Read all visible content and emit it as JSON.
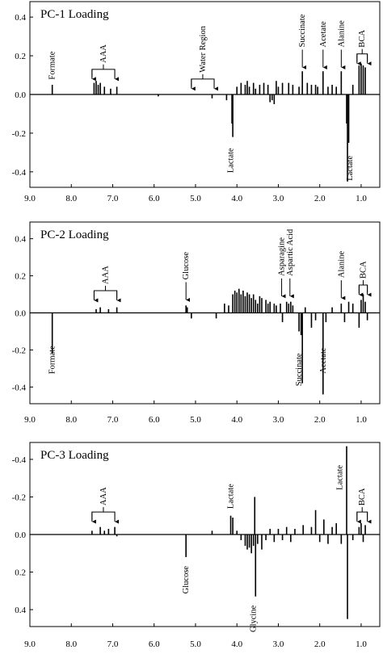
{
  "chart_data": [
    {
      "type": "stem",
      "title": "PC-1 Loading",
      "color": "#000000",
      "x": [
        8.46,
        7.45,
        7.4,
        7.35,
        7.3,
        7.2,
        7.05,
        6.9,
        5.9,
        4.6,
        4.25,
        4.12,
        4.1,
        4.0,
        3.9,
        3.8,
        3.75,
        3.7,
        3.6,
        3.55,
        3.45,
        3.35,
        3.25,
        3.2,
        3.15,
        3.1,
        3.05,
        3.0,
        2.9,
        2.75,
        2.65,
        2.5,
        2.42,
        2.3,
        2.2,
        2.1,
        2.05,
        1.92,
        1.8,
        1.7,
        1.6,
        1.48,
        1.35,
        1.33,
        1.3,
        1.2,
        1.05,
        1.0,
        0.95,
        0.9
      ],
      "values": [
        0.05,
        0.06,
        0.07,
        0.05,
        0.06,
        0.04,
        0.03,
        0.04,
        -0.01,
        -0.02,
        -0.03,
        -0.15,
        -0.22,
        0.04,
        0.06,
        0.05,
        0.07,
        0.04,
        0.06,
        0.03,
        0.05,
        0.06,
        0.05,
        -0.04,
        -0.03,
        -0.05,
        0.07,
        0.04,
        0.06,
        0.06,
        0.05,
        0.04,
        0.12,
        0.06,
        0.05,
        0.05,
        0.04,
        0.12,
        0.04,
        0.05,
        0.04,
        0.12,
        -0.15,
        -0.45,
        -0.25,
        0.05,
        0.15,
        0.16,
        0.15,
        0.14
      ],
      "xlim": [
        9.0,
        0.55
      ],
      "ylim": [
        -0.48,
        0.48
      ],
      "xticks": [
        {
          "value": 9,
          "label": "9.0"
        },
        {
          "value": 8,
          "label": "8.0"
        },
        {
          "value": 7,
          "label": "7.0"
        },
        {
          "value": 6,
          "label": "6.0"
        },
        {
          "value": 5,
          "label": "5.0"
        },
        {
          "value": 4,
          "label": "4.0"
        },
        {
          "value": 3,
          "label": "3.0"
        },
        {
          "value": 2,
          "label": "2.0"
        },
        {
          "value": 1,
          "label": "1.0"
        }
      ],
      "yticks": [
        -0.4,
        -0.2,
        {
          "value": 0,
          "label": "0.0"
        },
        0.2,
        0.4
      ],
      "annotations": [
        "Formate",
        "AAA",
        "Water Region",
        "Succinate",
        "Acetate",
        "Alanine",
        "BCA",
        "Lactate",
        "Lactate"
      ]
    },
    {
      "type": "stem",
      "title": "PC-2 Loading",
      "color": "#000000",
      "x": [
        8.46,
        7.4,
        7.3,
        7.1,
        6.9,
        5.23,
        5.2,
        5.1,
        4.5,
        4.3,
        4.2,
        4.1,
        4.05,
        4.0,
        3.95,
        3.9,
        3.85,
        3.8,
        3.75,
        3.7,
        3.65,
        3.6,
        3.55,
        3.5,
        3.45,
        3.4,
        3.3,
        3.25,
        3.2,
        3.1,
        3.05,
        2.95,
        2.9,
        2.8,
        2.75,
        2.7,
        2.65,
        2.5,
        2.45,
        2.42,
        2.35,
        2.2,
        2.1,
        1.92,
        1.85,
        1.7,
        1.48,
        1.4,
        1.3,
        1.2,
        1.05,
        1.0,
        0.95,
        0.9,
        0.85
      ],
      "values": [
        -0.22,
        0.02,
        0.03,
        0.02,
        0.03,
        0.04,
        0.03,
        -0.03,
        -0.03,
        0.05,
        0.04,
        0.1,
        0.12,
        0.11,
        0.13,
        0.1,
        0.12,
        0.09,
        0.11,
        0.1,
        0.08,
        0.1,
        0.07,
        0.05,
        0.09,
        0.08,
        0.07,
        0.05,
        0.06,
        0.05,
        0.04,
        0.05,
        -0.05,
        0.06,
        0.05,
        0.06,
        0.04,
        -0.1,
        -0.12,
        -0.38,
        0.03,
        -0.08,
        -0.04,
        -0.44,
        -0.05,
        0.03,
        0.05,
        -0.05,
        0.06,
        0.05,
        -0.08,
        0.07,
        0.1,
        0.06,
        -0.04
      ],
      "xlim": [
        9.0,
        0.55
      ],
      "ylim": [
        -0.49,
        0.49
      ],
      "xticks": [
        {
          "value": 9,
          "label": "9.0"
        },
        {
          "value": 8,
          "label": "8.0"
        },
        {
          "value": 7,
          "label": "7.0"
        },
        {
          "value": 6,
          "label": "6.0"
        },
        {
          "value": 5,
          "label": "5.0"
        },
        {
          "value": 4,
          "label": "4.0"
        },
        {
          "value": 3,
          "label": "3.0"
        },
        {
          "value": 2,
          "label": "2.0"
        },
        {
          "value": 1,
          "label": "1.0"
        }
      ],
      "yticks": [
        -0.4,
        -0.2,
        {
          "value": 0,
          "label": "0.0"
        },
        0.2,
        0.4
      ],
      "annotations": [
        "AAA",
        "Glucose",
        "Asparagine",
        "Aspartic Acid",
        "Alanine",
        "BCA",
        "Formate",
        "Succinate",
        "Acetate"
      ]
    },
    {
      "type": "stem",
      "title": "PC-3 Loading",
      "color": "#000000",
      "x": [
        7.5,
        7.3,
        7.2,
        7.1,
        6.95,
        6.9,
        5.23,
        4.6,
        4.15,
        4.1,
        4.0,
        3.9,
        3.8,
        3.75,
        3.7,
        3.65,
        3.6,
        3.57,
        3.55,
        3.5,
        3.4,
        3.3,
        3.2,
        3.1,
        3.0,
        2.9,
        2.8,
        2.7,
        2.6,
        2.4,
        2.2,
        2.1,
        2.0,
        1.9,
        1.8,
        1.7,
        1.6,
        1.48,
        1.35,
        1.33,
        1.2,
        1.05,
        1.0,
        0.95,
        0.9
      ],
      "values": [
        -0.02,
        -0.04,
        -0.02,
        -0.03,
        -0.04,
        0.01,
        0.12,
        -0.02,
        -0.1,
        -0.09,
        -0.02,
        0.03,
        0.06,
        0.08,
        0.07,
        0.1,
        0.06,
        -0.2,
        0.33,
        0.05,
        0.08,
        0.03,
        -0.03,
        0.04,
        -0.03,
        0.03,
        -0.04,
        0.04,
        -0.03,
        -0.05,
        -0.04,
        -0.13,
        0.04,
        -0.08,
        0.05,
        -0.04,
        -0.06,
        0.05,
        -0.47,
        0.45,
        0.03,
        -0.04,
        -0.06,
        0.04,
        -0.05
      ],
      "xlim": [
        9.0,
        0.55
      ],
      "ylim": [
        0.49,
        -0.49
      ],
      "xticks": [
        {
          "value": 9,
          "label": "9.0"
        },
        {
          "value": 8,
          "label": "8.0"
        },
        {
          "value": 7,
          "label": "7.0"
        },
        {
          "value": 6,
          "label": "6.0"
        },
        {
          "value": 5,
          "label": "5.0"
        },
        {
          "value": 4,
          "label": "4.0"
        },
        {
          "value": 3,
          "label": "3.0"
        },
        {
          "value": 2,
          "label": "2.0"
        },
        {
          "value": 1,
          "label": "1.0"
        }
      ],
      "yticks": [
        -0.4,
        -0.2,
        {
          "value": 0,
          "label": "0.0"
        },
        0.2,
        0.4
      ],
      "annotations": [
        "AAA",
        "Lactate",
        "Lactate",
        "BCA",
        "Glucose",
        "Glycine"
      ]
    }
  ]
}
